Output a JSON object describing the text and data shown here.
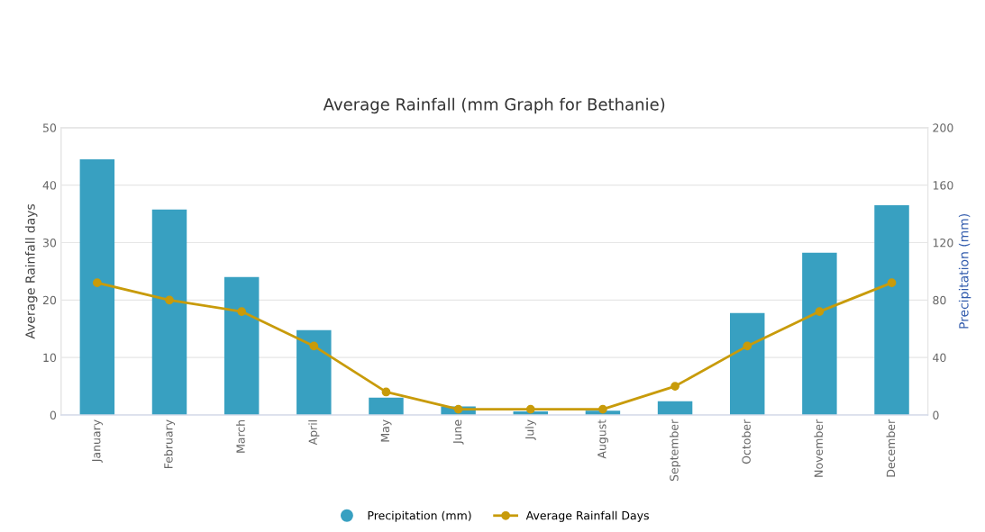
{
  "chart_data": {
    "type": "bar",
    "title": "Average Rainfall (mm Graph for Bethanie)",
    "ylabel": "Average Rainfall days",
    "y2label": "Precipitation (mm)",
    "categories": [
      "January",
      "February",
      "March",
      "April",
      "May",
      "June",
      "July",
      "August",
      "September",
      "October",
      "November",
      "December"
    ],
    "series": [
      {
        "name": "Precipitation (mm)",
        "axis": "y2",
        "color": "#38a0c1",
        "values": [
          178,
          143,
          96,
          59,
          12,
          6,
          2.5,
          3,
          9.5,
          71,
          113,
          146
        ]
      },
      {
        "name": "Average Rainfall Days",
        "type": "line",
        "axis": "y",
        "color": "#c89b0a",
        "marker": "circle",
        "values": [
          23,
          20,
          18,
          12,
          4,
          1,
          1,
          1,
          5,
          12,
          18,
          23
        ]
      }
    ],
    "ylim": [
      0,
      50
    ],
    "yticks": [
      0,
      10,
      20,
      30,
      40,
      50
    ],
    "y2lim": [
      0,
      200
    ],
    "y2ticks": [
      0,
      40,
      80,
      120,
      160,
      200
    ],
    "grid": "y",
    "legend": "bottom"
  }
}
